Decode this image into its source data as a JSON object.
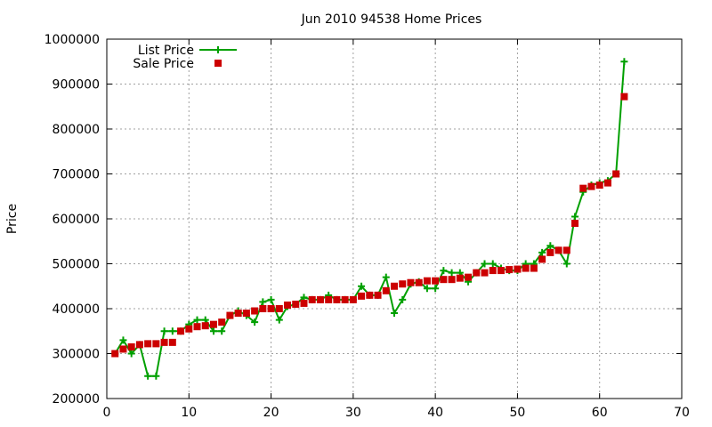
{
  "chart_data": {
    "type": "line",
    "title": "Jun 2010 94538 Home Prices",
    "xlabel": "",
    "ylabel": "Price",
    "xlim": [
      0,
      70
    ],
    "ylim": [
      200000,
      1000000
    ],
    "xticks": [
      0,
      10,
      20,
      30,
      40,
      50,
      60,
      70
    ],
    "yticks": [
      200000,
      300000,
      400000,
      500000,
      600000,
      700000,
      800000,
      900000,
      1000000
    ],
    "grid": true,
    "legend_position": "top-left",
    "x": [
      1,
      2,
      3,
      4,
      5,
      6,
      7,
      8,
      9,
      10,
      11,
      12,
      13,
      14,
      15,
      16,
      17,
      18,
      19,
      20,
      21,
      22,
      23,
      24,
      25,
      26,
      27,
      28,
      29,
      30,
      31,
      32,
      33,
      34,
      35,
      36,
      37,
      38,
      39,
      40,
      41,
      42,
      43,
      44,
      45,
      46,
      47,
      48,
      49,
      50,
      51,
      52,
      53,
      54,
      55,
      56,
      57,
      58,
      59,
      60,
      61,
      62,
      63
    ],
    "series": [
      {
        "name": "List Price",
        "style": "linespoints",
        "color": "#00a000",
        "values": [
          300000,
          330000,
          300000,
          320000,
          250000,
          250000,
          350000,
          350000,
          350000,
          365000,
          375000,
          375000,
          350000,
          350000,
          385000,
          395000,
          385000,
          370000,
          415000,
          420000,
          375000,
          405000,
          410000,
          425000,
          420000,
          420000,
          430000,
          420000,
          420000,
          420000,
          450000,
          430000,
          430000,
          470000,
          390000,
          420000,
          455000,
          460000,
          445000,
          445000,
          485000,
          480000,
          480000,
          460000,
          480000,
          500000,
          500000,
          490000,
          485000,
          485000,
          500000,
          500000,
          525000,
          540000,
          530000,
          500000,
          605000,
          660000,
          675000,
          680000,
          685000,
          700000,
          950000
        ]
      },
      {
        "name": "Sale Price",
        "style": "points",
        "color": "#cc0000",
        "values": [
          300000,
          310000,
          315000,
          320000,
          322000,
          322000,
          325000,
          325000,
          350000,
          355000,
          360000,
          362000,
          365000,
          370000,
          385000,
          390000,
          390000,
          395000,
          400000,
          400000,
          400000,
          408000,
          410000,
          412000,
          420000,
          420000,
          420000,
          420000,
          420000,
          420000,
          428000,
          430000,
          430000,
          440000,
          450000,
          455000,
          458000,
          458000,
          462000,
          462000,
          465000,
          465000,
          468000,
          470000,
          480000,
          480000,
          485000,
          485000,
          487000,
          488000,
          490000,
          490000,
          510000,
          525000,
          530000,
          530000,
          590000,
          668000,
          672000,
          675000,
          680000,
          700000,
          872000
        ]
      }
    ]
  }
}
